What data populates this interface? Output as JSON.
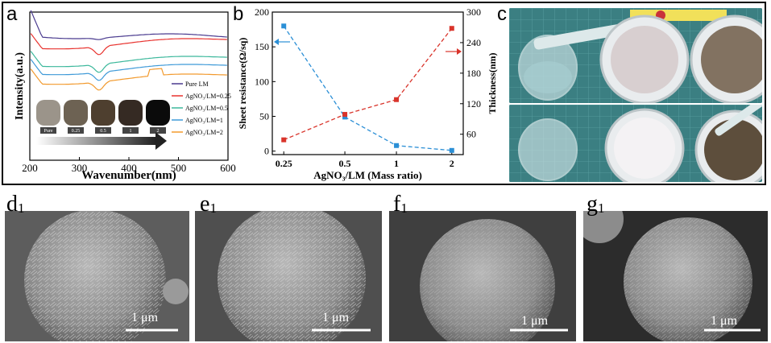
{
  "panels": {
    "a": "a",
    "b": "b",
    "c": "c",
    "d": "d",
    "e": "e",
    "f": "f",
    "g": "g",
    "sub": "1"
  },
  "chart_data": [
    {
      "type": "line",
      "panel": "a",
      "xlabel": "Wavenumber(nm)",
      "ylabel": "Intensity(a.u.)",
      "xlim": [
        200,
        600
      ],
      "xticks": [
        200,
        300,
        400,
        500,
        600
      ],
      "legend_position": "right",
      "series": [
        {
          "name": "Pure LM",
          "color": "#4a3b8f"
        },
        {
          "name": "AgNO₃/LM=0.25",
          "color": "#e8332f"
        },
        {
          "name": "AgNO₃/LM=0.5",
          "color": "#3cb89c"
        },
        {
          "name": "AgNO₃/LM=1",
          "color": "#3f9ad8"
        },
        {
          "name": "AgNO₃/LM=2",
          "color": "#f29a2e"
        }
      ],
      "swatches": [
        {
          "label": "Pure",
          "color": "#9b948a"
        },
        {
          "label": "0.25",
          "color": "#6d6253"
        },
        {
          "label": "0.5",
          "color": "#4e3f2f"
        },
        {
          "label": "1",
          "color": "#352a23"
        },
        {
          "label": "2",
          "color": "#0b0b0b"
        }
      ]
    },
    {
      "type": "line",
      "panel": "b",
      "xlabel": "AgNO₃/LM (Mass ratio)",
      "ylabel": "Sheet resistance(Ω/sq)",
      "ylabel_right": "Thickness(nm)",
      "categories": [
        "0.25",
        "0.5",
        "1",
        "2"
      ],
      "ylim": [
        -5,
        200
      ],
      "yticks": [
        0,
        50,
        100,
        150,
        200
      ],
      "ylim_right": [
        20,
        300
      ],
      "yticks_right": [
        60,
        120,
        180,
        240,
        300
      ],
      "series": [
        {
          "name": "",
          "axis": "left",
          "color": "#2b8fd6",
          "values": [
            180,
            49,
            8,
            1
          ]
        },
        {
          "name": "",
          "axis": "right",
          "color": "#d9342b",
          "values": [
            49,
            99,
            128,
            268
          ]
        }
      ]
    }
  ],
  "photos": {
    "vial_caption": "",
    "strip_label": "",
    "dish_labels": [
      "",
      ""
    ]
  },
  "sem": {
    "scale_label": "1 μm"
  }
}
